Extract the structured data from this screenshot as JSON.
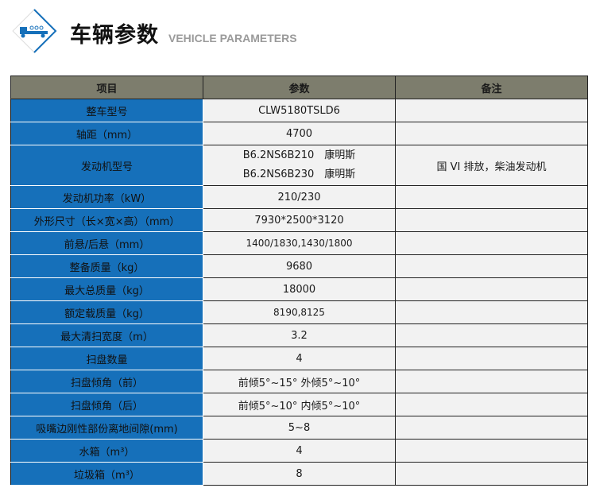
{
  "header": {
    "title": "车辆参数",
    "subtitle": "VEHICLE PARAMETERS",
    "icon": "truck-icon",
    "accent": "#1670ba"
  },
  "table": {
    "columns": [
      "项目",
      "参数",
      "备注"
    ],
    "rows": [
      {
        "item": "整车型号",
        "value": "CLW5180TSLD6",
        "note": ""
      },
      {
        "item": "轴距（mm）",
        "value": "4700",
        "note": ""
      },
      {
        "item": "发动机型号",
        "value_lines": [
          "B6.2NS6B210　康明斯",
          "B6.2NS6B230　康明斯"
        ],
        "note": "国 VI 排放，柴油发动机"
      },
      {
        "item": "发动机功率（kW）",
        "value": "210/230",
        "note": ""
      },
      {
        "item": "外形尺寸（长×宽×高）（mm）",
        "value": "7930*2500*3120",
        "note": ""
      },
      {
        "item": "前悬/后悬（mm）",
        "value": "1400/1830,1430/1800",
        "note": ""
      },
      {
        "item": "整备质量（kg）",
        "value": "9680",
        "note": ""
      },
      {
        "item": "最大总质量（kg）",
        "value": "18000",
        "note": ""
      },
      {
        "item": "额定载质量（kg）",
        "value": "8190,8125",
        "note": ""
      },
      {
        "item": "最大清扫宽度（m）",
        "value": "3.2",
        "note": ""
      },
      {
        "item": "扫盘数量",
        "value": "4",
        "note": ""
      },
      {
        "item": "扫盘倾角（前）",
        "value": "前倾5°~15°  外倾5°~10°",
        "note": ""
      },
      {
        "item": "扫盘倾角（后）",
        "value": "前倾5°~10°  内倾5°~10°",
        "note": ""
      },
      {
        "item": "吸嘴边刚性部份离地间隙(mm)",
        "value": "5~8",
        "note": ""
      },
      {
        "item": "水箱（m³）",
        "value": "4",
        "note": ""
      },
      {
        "item": "垃圾箱（m³）",
        "value": "8",
        "note": ""
      }
    ]
  }
}
